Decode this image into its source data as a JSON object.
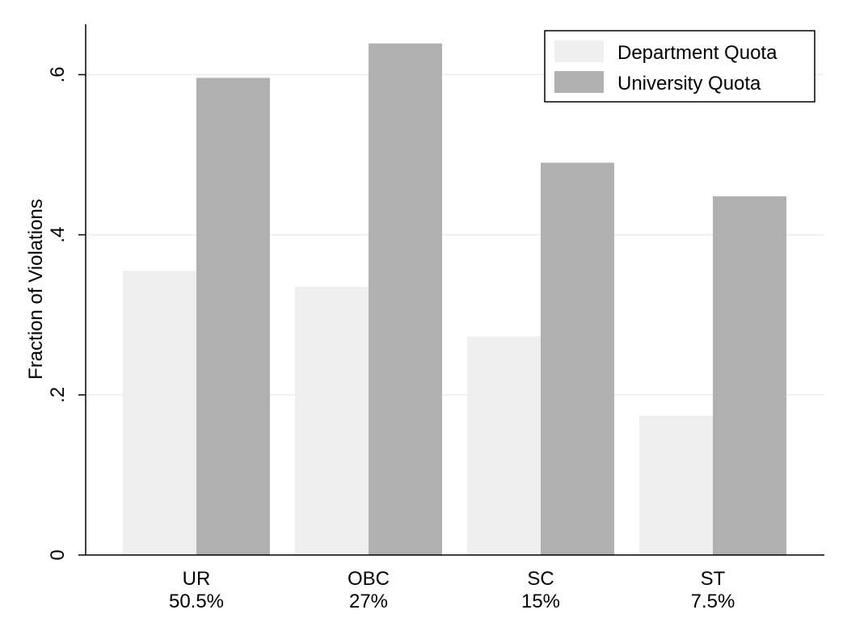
{
  "chart_data": {
    "type": "bar",
    "title": "",
    "xlabel": "",
    "ylabel": "Fraction of Violations",
    "ylim": [
      0,
      0.663
    ],
    "yticks": [
      {
        "value": 0,
        "label": "0"
      },
      {
        "value": 0.2,
        "label": ".2"
      },
      {
        "value": 0.4,
        "label": ".4"
      },
      {
        "value": 0.6,
        "label": ".6"
      }
    ],
    "grid": true,
    "legend_position": "top-right",
    "categories": [
      {
        "name": "UR",
        "share": "50.5%"
      },
      {
        "name": "OBC",
        "share": "27%"
      },
      {
        "name": "SC",
        "share": "15%"
      },
      {
        "name": "ST",
        "share": "7.5%"
      }
    ],
    "series": [
      {
        "name": "Department Quota",
        "color": "#efefef",
        "values": [
          0.355,
          0.335,
          0.273,
          0.174
        ]
      },
      {
        "name": "University Quota",
        "color": "#b0b0b0",
        "values": [
          0.596,
          0.639,
          0.49,
          0.448
        ]
      }
    ]
  }
}
